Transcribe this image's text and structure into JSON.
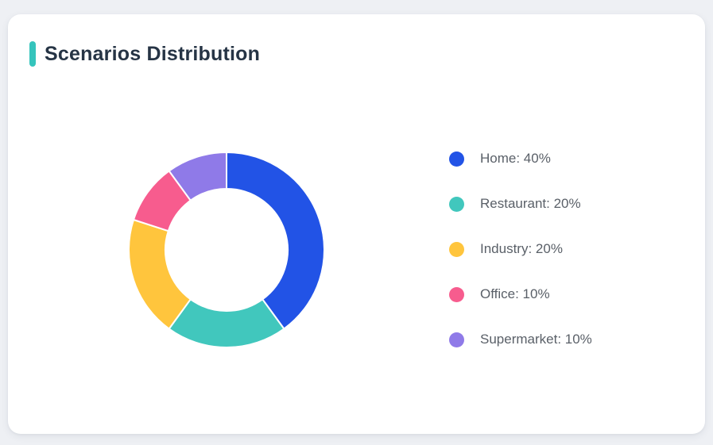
{
  "page": {
    "background_color": "#eef0f4"
  },
  "card": {
    "title": "Scenarios Distribution",
    "accent_color": "#35c4bc",
    "background_color": "#ffffff"
  },
  "chart_data": {
    "type": "pie",
    "subtype": "donut",
    "title": "Scenarios Distribution",
    "legend_position": "right",
    "start_angle_deg": 0,
    "direction": "clockwise",
    "inner_radius_ratio": 0.63,
    "categories": [
      "Home",
      "Restaurant",
      "Industry",
      "Office",
      "Supermarket"
    ],
    "values": [
      40,
      20,
      20,
      10,
      10
    ],
    "unit": "%",
    "colors": [
      "#2253e6",
      "#41c7bd",
      "#ffc53d",
      "#f75c8e",
      "#8f7ae8"
    ],
    "legend_labels": [
      "Home: 40%",
      "Restaurant: 20%",
      "Industry: 20%",
      "Office: 10%",
      "Supermarket: 10%"
    ],
    "segment_border_color": "#ffffff"
  }
}
